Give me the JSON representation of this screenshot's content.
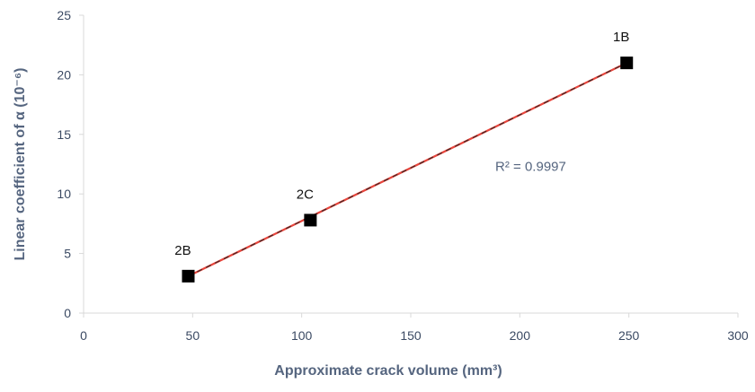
{
  "chart_data": {
    "type": "scatter",
    "title": "",
    "xlabel": "Approximate crack volume (mm³)",
    "ylabel": "Linear coefficient of α (10⁻⁶)",
    "xlim": [
      0,
      300
    ],
    "ylim": [
      0,
      25
    ],
    "xticks": [
      "0",
      "50",
      "100",
      "150",
      "200",
      "250",
      "300"
    ],
    "yticks": [
      "0",
      "5",
      "10",
      "15",
      "20",
      "25"
    ],
    "grid": false,
    "legend": "none",
    "points": [
      {
        "label": "2B",
        "x": 48,
        "y": 3.1
      },
      {
        "label": "2C",
        "x": 104,
        "y": 7.8
      },
      {
        "label": "1B",
        "x": 249,
        "y": 21.0
      }
    ],
    "trendline": {
      "type": "linear",
      "from": {
        "x": 48,
        "y": 3.1
      },
      "to": {
        "x": 249,
        "y": 21.0
      },
      "annotation": "R² = 0.9997",
      "annotation_anchor": {
        "x": 205,
        "y": 12.3
      }
    },
    "colors": {
      "marker": "#000000",
      "trendline": "#e8453c",
      "trendline_dash": "#222222",
      "axis": "#d9d9d9",
      "tick_text": "#3b4a63",
      "title_text": "#55657f"
    }
  }
}
